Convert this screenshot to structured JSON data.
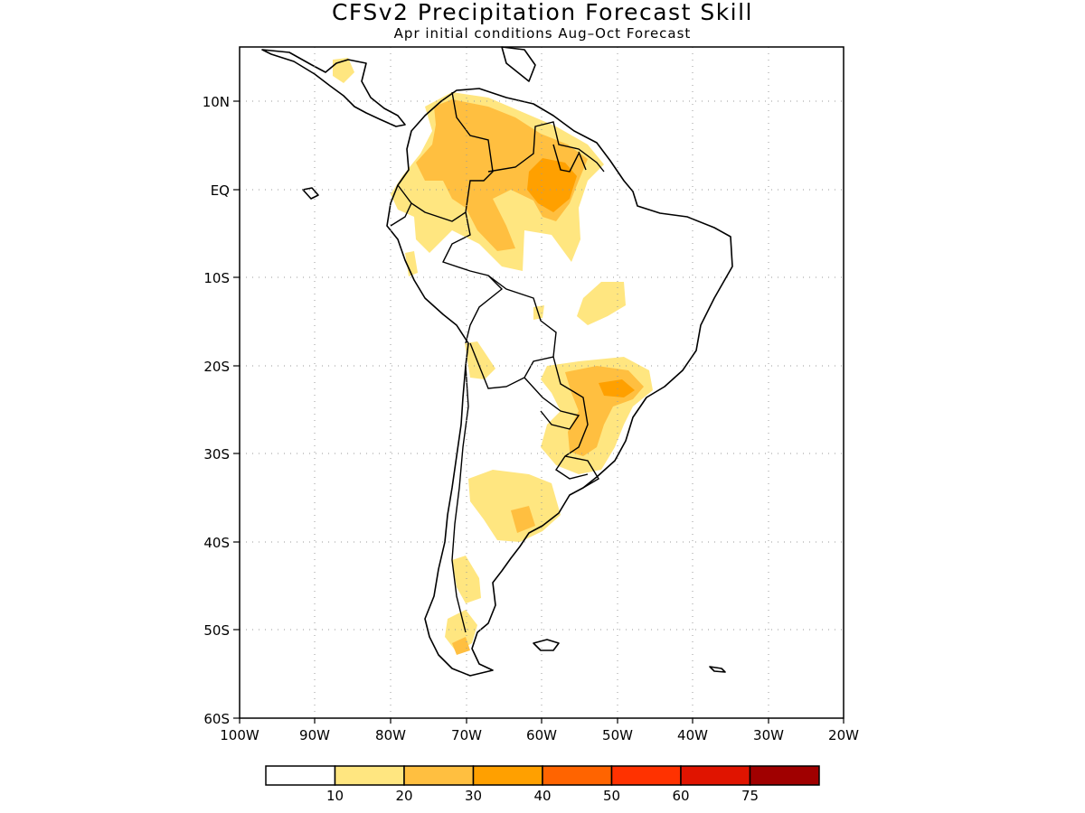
{
  "header": {
    "title": "CFSv2 Precipitation Forecast Skill",
    "subtitle": "Apr initial conditions  Aug–Oct Forecast"
  },
  "map": {
    "lat_labels": [
      "10N",
      "EQ",
      "10S",
      "20S",
      "30S",
      "40S",
      "50S",
      "60S"
    ],
    "lon_labels": [
      "100W",
      "90W",
      "80W",
      "70W",
      "60W",
      "50W",
      "40W",
      "30W",
      "20W"
    ],
    "lat_range": [
      -60,
      15
    ],
    "lon_range": [
      -100,
      -20
    ],
    "land_outline_color": "#000000",
    "grid_color": "#999999"
  },
  "legend": {
    "labels": [
      "10",
      "20",
      "30",
      "40",
      "50",
      "60",
      "75"
    ],
    "colors": [
      "#ffffff",
      "#ffe680",
      "#ffbf40",
      "#ffa000",
      "#ff6400",
      "#ff3200",
      "#e01400",
      "#a00000"
    ]
  }
}
